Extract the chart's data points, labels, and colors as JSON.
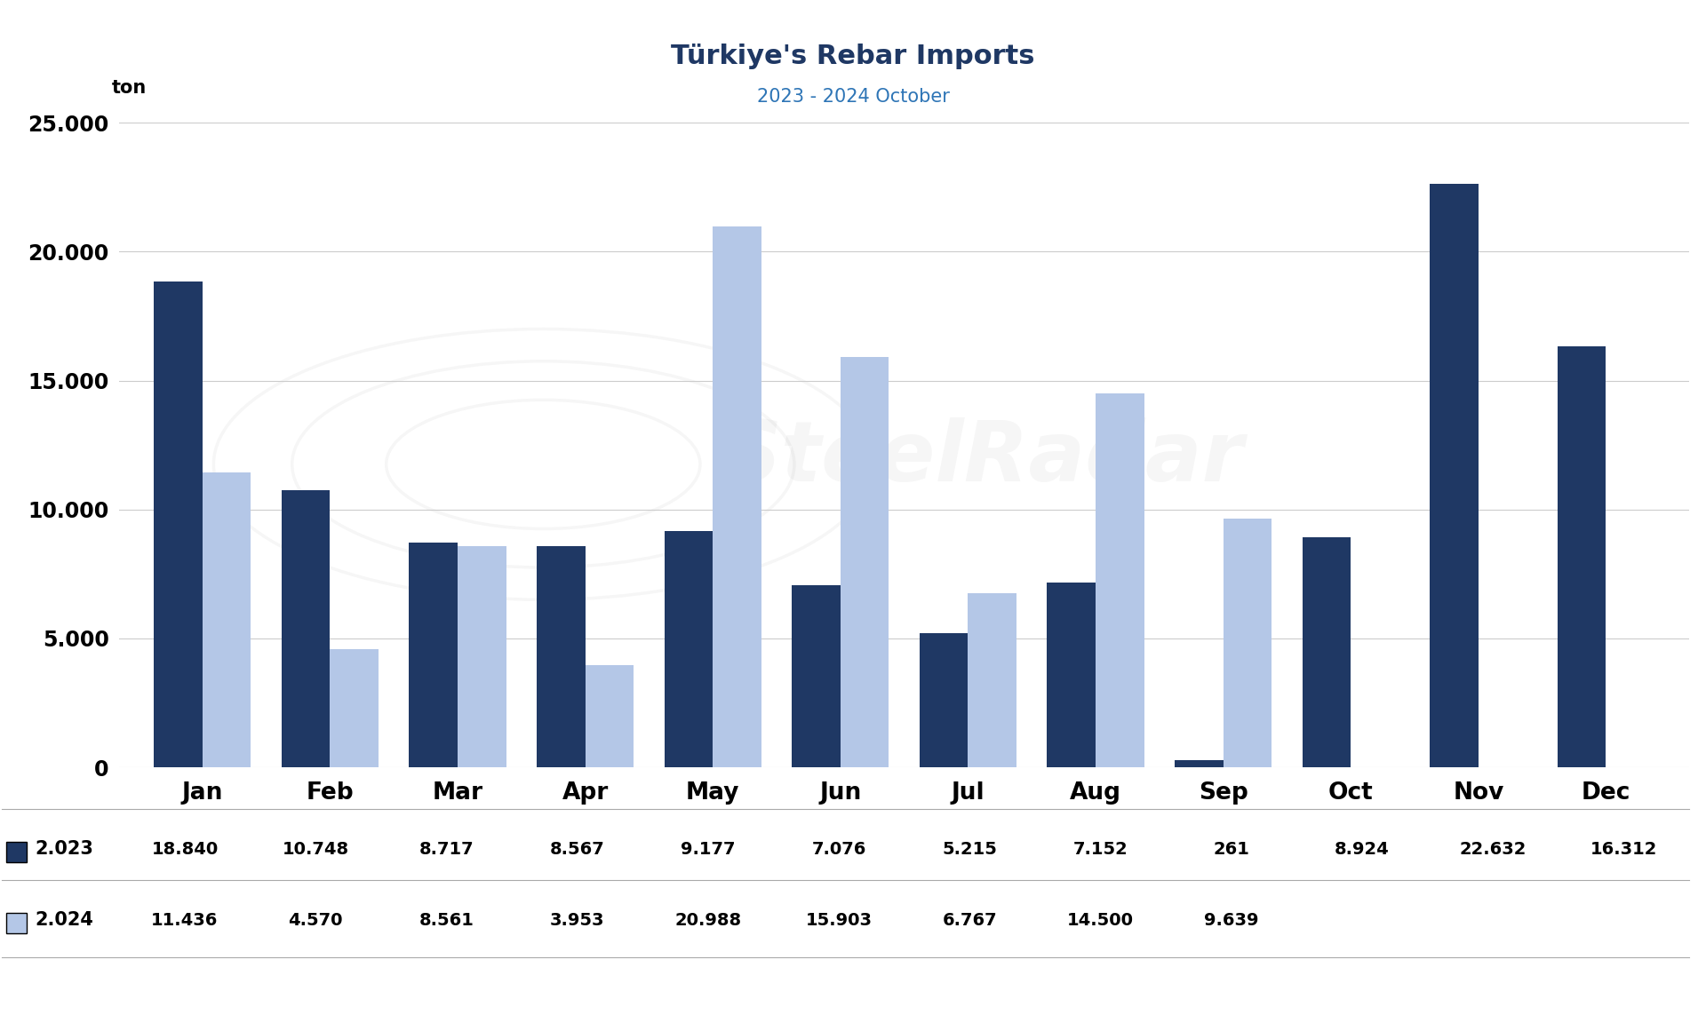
{
  "title": "Türkiye's Rebar Imports",
  "subtitle": "2023 - 2024 October",
  "ylabel": "ton",
  "months": [
    "Jan",
    "Feb",
    "Mar",
    "Apr",
    "May",
    "Jun",
    "Jul",
    "Aug",
    "Sep",
    "Oct",
    "Nov",
    "Dec"
  ],
  "series_2023": [
    18840,
    10748,
    8717,
    8567,
    9177,
    7076,
    5215,
    7152,
    261,
    8924,
    22632,
    16312
  ],
  "series_2024": [
    11436,
    4570,
    8561,
    3953,
    20988,
    15903,
    6767,
    14500,
    9639,
    0,
    0,
    0
  ],
  "series_2024_mask": [
    1,
    1,
    1,
    1,
    1,
    1,
    1,
    1,
    1,
    0,
    0,
    0
  ],
  "color_2023": "#1f3864",
  "color_2024": "#b4c7e7",
  "legend_2023": "2.023",
  "legend_2024": "2.024",
  "table_2023": [
    "18.840",
    "10.748",
    "8.717",
    "8.567",
    "9.177",
    "7.076",
    "5.215",
    "7.152",
    "261",
    "8.924",
    "22.632",
    "16.312"
  ],
  "table_2024": [
    "11.436",
    "4.570",
    "8.561",
    "3.953",
    "20.988",
    "15.903",
    "6.767",
    "14.500",
    "9.639",
    "",
    "",
    ""
  ],
  "ylim": [
    0,
    25000
  ],
  "yticks": [
    0,
    5000,
    10000,
    15000,
    20000,
    25000
  ],
  "ytick_labels": [
    "0",
    "5.000",
    "10.000",
    "15.000",
    "20.000",
    "25.000"
  ],
  "background_color": "#ffffff",
  "title_color": "#1f3864",
  "subtitle_color": "#2e75b6",
  "bar_width": 0.38,
  "title_fontsize": 22,
  "subtitle_fontsize": 15
}
